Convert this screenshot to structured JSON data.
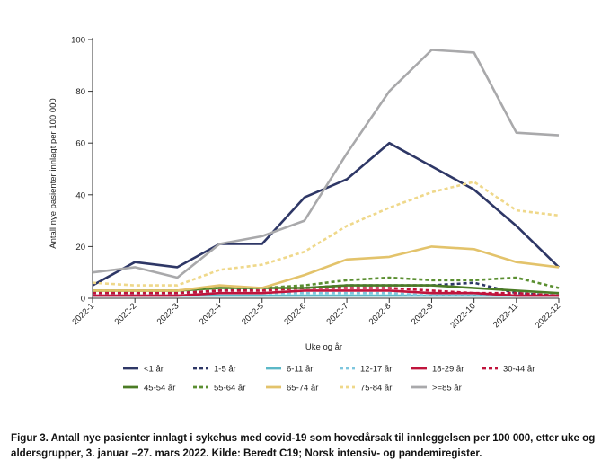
{
  "chart_data": {
    "type": "line",
    "xlabel": "Uke og år",
    "ylabel": "Antall nye pasienter innlagt per 100 000",
    "ylim": [
      0,
      100
    ],
    "yticks": [
      0,
      20,
      40,
      60,
      80,
      100
    ],
    "x": [
      "2022-1",
      "2022-2",
      "2022-3",
      "2022-4",
      "2022-5",
      "2022-6",
      "2022-7",
      "2022-8",
      "2022-9",
      "2022-10",
      "2022-11",
      "2022-12"
    ],
    "legend_position": "bottom",
    "grid": false,
    "series": [
      {
        "name": "<1 år",
        "color": "#2e3766",
        "style": "solid",
        "values": [
          5,
          14,
          12,
          21,
          21,
          39,
          46,
          60,
          51,
          42,
          28,
          12
        ]
      },
      {
        "name": "1-5 år",
        "color": "#2e3766",
        "style": "dotted",
        "values": [
          3,
          2,
          2,
          3,
          4,
          4,
          5,
          5,
          5,
          6,
          2,
          1
        ]
      },
      {
        "name": "6-11 år",
        "color": "#5bb8c7",
        "style": "solid",
        "values": [
          1,
          1,
          1,
          1,
          1,
          1,
          1,
          1,
          1,
          1,
          1,
          1
        ]
      },
      {
        "name": "12-17 år",
        "color": "#7ec6de",
        "style": "dotted",
        "values": [
          1,
          1,
          1,
          2,
          2,
          2,
          2,
          2,
          1,
          1,
          1,
          1
        ]
      },
      {
        "name": "18-29 år",
        "color": "#c0143c",
        "style": "solid",
        "values": [
          1,
          1,
          1,
          2,
          2,
          3,
          3,
          3,
          2,
          2,
          1,
          1
        ]
      },
      {
        "name": "30-44 år",
        "color": "#c0143c",
        "style": "dotted",
        "values": [
          2,
          2,
          2,
          3,
          3,
          4,
          4,
          4,
          3,
          2,
          2,
          1
        ]
      },
      {
        "name": "45-54 år",
        "color": "#4b7c25",
        "style": "solid",
        "values": [
          3,
          3,
          3,
          4,
          4,
          4,
          5,
          5,
          5,
          4,
          3,
          2
        ]
      },
      {
        "name": "55-64 år",
        "color": "#5b8f31",
        "style": "dotted",
        "values": [
          3,
          3,
          3,
          4,
          4,
          5,
          7,
          8,
          7,
          7,
          8,
          4
        ]
      },
      {
        "name": "65-74 år",
        "color": "#e3c36b",
        "style": "solid",
        "values": [
          3,
          3,
          3,
          5,
          4,
          9,
          15,
          16,
          20,
          19,
          14,
          12
        ]
      },
      {
        "name": "75-84 år",
        "color": "#efd88a",
        "style": "dotted",
        "values": [
          6,
          5,
          5,
          11,
          13,
          18,
          28,
          35,
          41,
          45,
          34,
          32
        ]
      },
      {
        "name": ">=85 år",
        "color": "#a9a9ab",
        "style": "solid",
        "values": [
          10,
          12,
          8,
          21,
          24,
          30,
          56,
          80,
          96,
          95,
          64,
          63
        ]
      }
    ]
  },
  "caption": "Figur 3. Antall nye pasienter innlagt i sykehus med covid-19 som hovedårsak til innleggelsen per 100 000, etter uke og aldersgrupper, 3. januar –27. mars 2022. Kilde: Beredt C19; Norsk intensiv- og pandemiregister."
}
